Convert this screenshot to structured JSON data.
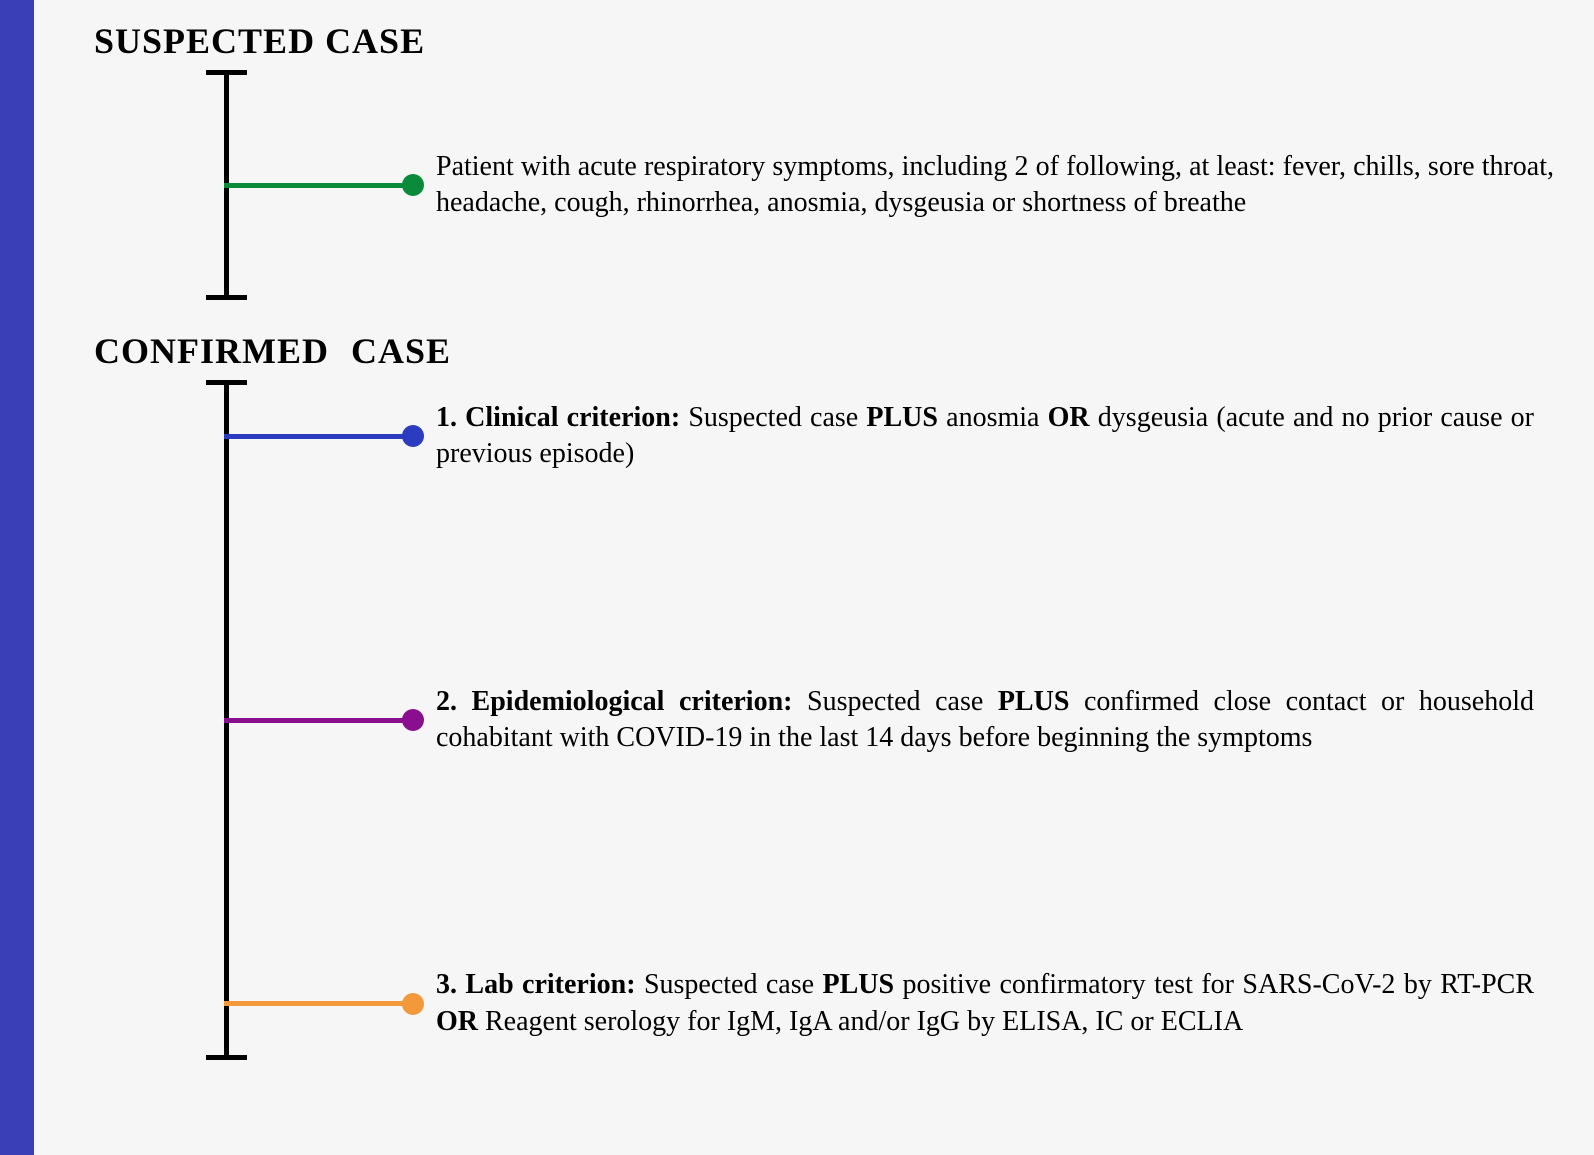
{
  "background_color": "#f6f6f6",
  "sidebar_color": "#3a3eb7",
  "line_color": "#000000",
  "font_family": "Times New Roman",
  "title_fontsize": 36,
  "body_fontsize": 28,
  "suspected": {
    "heading": "SUSPECTED CASE",
    "branch_color": "#0b8a3a",
    "description_html": "Patient with acute respiratory symptoms, including 2 of following, at least: fever, chills, sore throat, headache, cough, rhinorrhea, anosmia, dysgeusia  or shortness of breathe"
  },
  "confirmed": {
    "heading": "CONFIRMED  CASE",
    "items": [
      {
        "branch_color": "#2c3cc0",
        "html": "<b>1. Clinical criterion:</b> Suspected  case <b>PLUS</b> anosmia <b>OR</b> dysgeusia (acute and no prior cause or previous episode)"
      },
      {
        "branch_color": "#8a0f8f",
        "html": "<b>2. Epidemiological criterion:</b> Suspected case <b>PLUS</b> confirmed close contact or household cohabitant with COVID-19 in the last 14 days before beginning the symptoms"
      },
      {
        "branch_color": "#f29a3b",
        "html": "<b>3. Lab criterion:</b> Suspected case <b>PLUS</b> positive confirmatory test for SARS-CoV-2 by RT-PCR <b>OR</b> Reagent serology for IgM, IgA and/or IgG by ELISA, IC or ECLIA"
      }
    ]
  }
}
